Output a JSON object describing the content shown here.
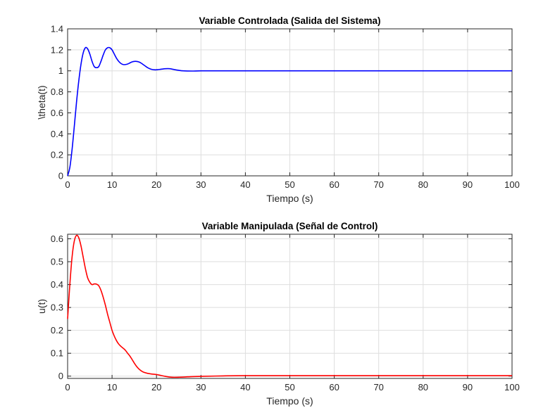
{
  "chart_data": [
    {
      "type": "line",
      "title": "Variable Controlada (Salida del Sistema)",
      "xlabel": "Tiempo (s)",
      "ylabel": "\\theta(t)",
      "xlim": [
        0,
        100
      ],
      "ylim": [
        0,
        1.4
      ],
      "xticks": [
        "0",
        "10",
        "20",
        "30",
        "40",
        "50",
        "60",
        "70",
        "80",
        "90",
        "100"
      ],
      "yticks": [
        "0",
        "0.2",
        "0.4",
        "0.6",
        "0.8",
        "1",
        "1.2",
        "1.4"
      ],
      "grid": true,
      "color": "#0000ff",
      "series": [
        {
          "x": [
            0,
            0.5,
            1,
            1.5,
            2,
            2.5,
            3,
            3.5,
            4,
            4.5,
            5,
            5.5,
            6,
            6.5,
            7,
            7.5,
            8,
            8.5,
            9,
            9.5,
            10,
            10.5,
            11,
            11.5,
            12,
            12.5,
            13,
            13.5,
            14,
            14.5,
            15,
            15.5,
            16,
            16.5,
            17,
            17.5,
            18,
            18.5,
            19,
            19.5,
            20,
            21,
            22,
            23,
            24,
            25,
            26,
            28,
            30,
            35,
            40,
            50,
            60,
            70,
            80,
            90,
            100
          ],
          "y": [
            0,
            0.08,
            0.25,
            0.47,
            0.7,
            0.9,
            1.06,
            1.17,
            1.22,
            1.21,
            1.16,
            1.09,
            1.04,
            1.03,
            1.04,
            1.09,
            1.15,
            1.2,
            1.22,
            1.22,
            1.2,
            1.16,
            1.12,
            1.09,
            1.07,
            1.06,
            1.06,
            1.065,
            1.075,
            1.085,
            1.09,
            1.09,
            1.085,
            1.075,
            1.06,
            1.045,
            1.03,
            1.02,
            1.013,
            1.01,
            1.01,
            1.015,
            1.02,
            1.02,
            1.012,
            1.005,
            1.0,
            0.998,
            1.0,
            1.0,
            1.0,
            1.0,
            1.0,
            1.0,
            1.0,
            1.0,
            1.0
          ]
        }
      ]
    },
    {
      "type": "line",
      "title": "Variable Manipulada (Señal de Control)",
      "xlabel": "Tiempo (s)",
      "ylabel": "u(t)",
      "xlim": [
        0,
        100
      ],
      "ylim": [
        -0.01,
        0.62
      ],
      "xticks": [
        "0",
        "10",
        "20",
        "30",
        "40",
        "50",
        "60",
        "70",
        "80",
        "90",
        "100"
      ],
      "yticks": [
        "0",
        "0.1",
        "0.2",
        "0.3",
        "0.4",
        "0.5",
        "0.6"
      ],
      "grid": true,
      "color": "#ff0000",
      "series": [
        {
          "x": [
            0,
            0.5,
            1,
            1.5,
            2,
            2.5,
            3,
            3.5,
            4,
            4.5,
            5,
            5.5,
            6,
            6.5,
            7,
            7.5,
            8,
            8.5,
            9,
            9.5,
            10,
            10.5,
            11,
            11.5,
            12,
            12.5,
            13,
            13.5,
            14,
            14.5,
            15,
            15.5,
            16,
            16.5,
            17,
            18,
            19,
            20,
            21,
            22,
            23,
            24,
            26,
            28,
            30,
            35,
            40,
            50,
            60,
            70,
            80,
            90,
            100
          ],
          "y": [
            0.25,
            0.4,
            0.52,
            0.59,
            0.615,
            0.605,
            0.57,
            0.52,
            0.47,
            0.43,
            0.41,
            0.4,
            0.403,
            0.402,
            0.395,
            0.375,
            0.345,
            0.31,
            0.27,
            0.235,
            0.2,
            0.175,
            0.155,
            0.14,
            0.13,
            0.122,
            0.113,
            0.1,
            0.088,
            0.073,
            0.057,
            0.043,
            0.032,
            0.024,
            0.018,
            0.012,
            0.009,
            0.007,
            0.003,
            -0.001,
            -0.004,
            -0.005,
            -0.004,
            -0.002,
            -0.001,
            0.001,
            0.002,
            0.002,
            0.002,
            0.002,
            0.002,
            0.002,
            0.002
          ]
        }
      ]
    }
  ]
}
